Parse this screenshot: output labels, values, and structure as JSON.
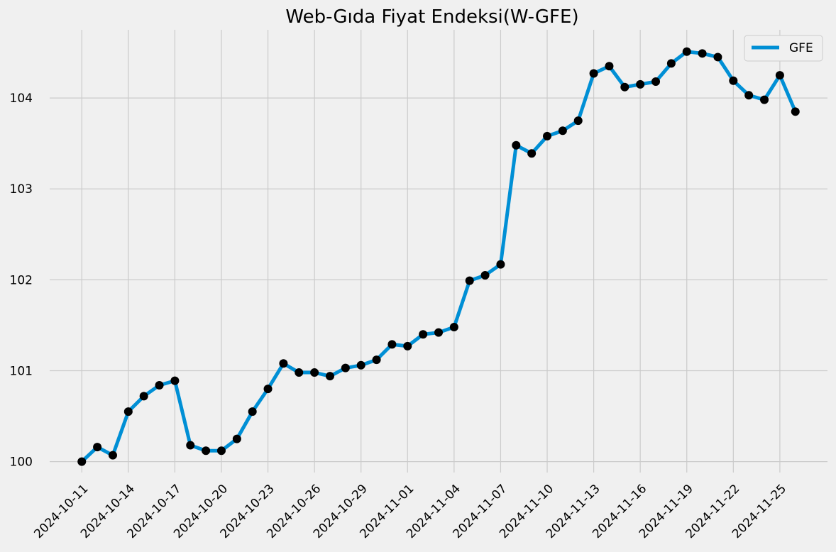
{
  "chart_data": {
    "type": "line",
    "title": "Web-Gıda Fiyat Endeksi(W-GFE)",
    "xlabel": "",
    "ylabel": "",
    "ylim": [
      99.88,
      104.75
    ],
    "y_ticks": [
      100,
      101,
      102,
      103,
      104
    ],
    "x_ticks": [
      "2024-10-11",
      "2024-10-14",
      "2024-10-17",
      "2024-10-20",
      "2024-10-23",
      "2024-10-26",
      "2024-10-29",
      "2024-11-01",
      "2024-11-04",
      "2024-11-07",
      "2024-11-10",
      "2024-11-13",
      "2024-11-16",
      "2024-11-19",
      "2024-11-22",
      "2024-11-25"
    ],
    "grid": true,
    "legend_position": "top-right",
    "colors": {
      "line": "#008fd5",
      "marker": "#000000",
      "background": "#f0f0f0",
      "grid": "#cbcbcb"
    },
    "series": [
      {
        "name": "GFE",
        "x": [
          "2024-10-11",
          "2024-10-12",
          "2024-10-13",
          "2024-10-14",
          "2024-10-15",
          "2024-10-16",
          "2024-10-17",
          "2024-10-18",
          "2024-10-19",
          "2024-10-20",
          "2024-10-21",
          "2024-10-22",
          "2024-10-23",
          "2024-10-24",
          "2024-10-25",
          "2024-10-26",
          "2024-10-27",
          "2024-10-28",
          "2024-10-29",
          "2024-10-30",
          "2024-10-31",
          "2024-11-01",
          "2024-11-02",
          "2024-11-03",
          "2024-11-04",
          "2024-11-05",
          "2024-11-06",
          "2024-11-07",
          "2024-11-08",
          "2024-11-09",
          "2024-11-10",
          "2024-11-11",
          "2024-11-12",
          "2024-11-13",
          "2024-11-14",
          "2024-11-15",
          "2024-11-16",
          "2024-11-17",
          "2024-11-18",
          "2024-11-19",
          "2024-11-20",
          "2024-11-21",
          "2024-11-22",
          "2024-11-23",
          "2024-11-24",
          "2024-11-25",
          "2024-11-26"
        ],
        "values": [
          100.0,
          100.16,
          100.07,
          100.55,
          100.72,
          100.84,
          100.89,
          100.18,
          100.12,
          100.12,
          100.25,
          100.55,
          100.8,
          101.08,
          100.98,
          100.98,
          100.94,
          101.03,
          101.06,
          101.12,
          101.29,
          101.27,
          101.4,
          101.42,
          101.48,
          101.99,
          102.05,
          102.17,
          103.48,
          103.39,
          103.58,
          103.64,
          103.75,
          104.27,
          104.35,
          104.12,
          104.15,
          104.18,
          104.38,
          104.51,
          104.49,
          104.45,
          104.19,
          104.03,
          103.98,
          104.25,
          103.85
        ]
      }
    ]
  }
}
